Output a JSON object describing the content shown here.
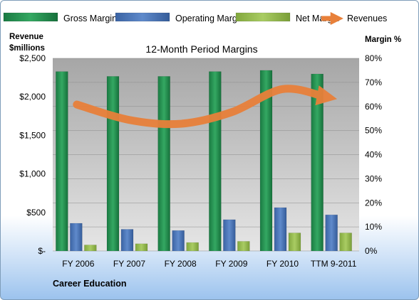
{
  "colors": {
    "gross": "#1f8a4c",
    "operating": "#4a74b8",
    "net": "#94b84d",
    "revenue": "#e8803a",
    "plot_bg": "#bfbfbf",
    "text": "#000000"
  },
  "chart_data": {
    "type": "bar",
    "title": "12-Month Period Margins",
    "ylabel_left": "Revenue\n$millions",
    "ylabel_right": "Margin %",
    "categories": [
      "FY 2006",
      "FY 2007",
      "FY 2008",
      "FY 2009",
      "FY 2010",
      "TTM 9-2011"
    ],
    "series": [
      {
        "name": "Gross Margin",
        "values": [
          74.5,
          72.5,
          72.5,
          74.5,
          75,
          73.5
        ]
      },
      {
        "name": "Operating Margin",
        "values": [
          11.5,
          9,
          8.5,
          13,
          18,
          15
        ]
      },
      {
        "name": "Net Margin",
        "values": [
          2.5,
          3,
          3.5,
          4,
          7.5,
          7.5
        ]
      },
      {
        "name": "Revenues",
        "type": "line",
        "values": [
          1900,
          1700,
          1650,
          1800,
          2100,
          2000
        ]
      }
    ],
    "ylim_left": [
      0,
      2500
    ],
    "ylim_right": [
      0,
      80
    ],
    "yticks_left": [
      "$-",
      "$500",
      "$1,000",
      "$1,500",
      "$2,000",
      "$2,500"
    ],
    "yticks_right": [
      "0%",
      "10%",
      "20%",
      "30%",
      "40%",
      "50%",
      "60%",
      "70%",
      "80%"
    ],
    "legend_position": "top",
    "grid": true,
    "footer": "Career Education"
  }
}
